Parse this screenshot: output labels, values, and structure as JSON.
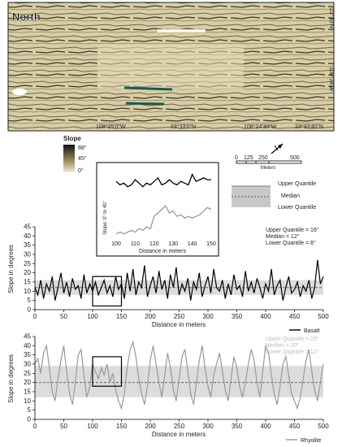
{
  "map": {
    "title": "North",
    "coords": [
      "108°25'0\"W",
      "23°33'0\"N",
      "108°24'30\"W",
      "23°33'40\"N",
      "23°33'N",
      "108°24'W"
    ],
    "colors": {
      "frame": "#222222",
      "background": "#d9cfa8"
    }
  },
  "slope_legend": {
    "title": "Slope",
    "labels": [
      "88°",
      "45°",
      "0°"
    ],
    "colors": {
      "high": "#111111",
      "mid": "#8a7a52",
      "low": "#f1ead2"
    }
  },
  "scale_bar": {
    "ticks": [
      "0",
      "125",
      "250",
      "500"
    ],
    "unit": "Meters"
  },
  "quantile_legend": {
    "upper": "Upper Quantile",
    "median": "Median",
    "lower": "Lower Quantile",
    "band_color": "#c8c8c8"
  },
  "chart_data": [
    {
      "type": "line",
      "id": "inset",
      "xlabel": "Distance in meters",
      "ylabel": "Slope: 0° to 40°",
      "xlim": [
        100,
        150
      ],
      "ylim": [
        0,
        40
      ],
      "xticks": [
        "100",
        "110",
        "120",
        "130",
        "140",
        "150"
      ],
      "series": [
        {
          "color": "#000000",
          "x": [
            100,
            102,
            104,
            106,
            108,
            110,
            112,
            114,
            116,
            118,
            120,
            122,
            124,
            126,
            128,
            130,
            132,
            134,
            136,
            138,
            140,
            142,
            144,
            146,
            148,
            150
          ],
          "y": [
            32,
            30,
            31,
            29,
            30,
            33,
            31,
            29,
            31,
            30,
            32,
            34,
            30,
            31,
            33,
            31,
            30,
            32,
            31,
            30,
            36,
            32,
            33,
            34,
            33,
            33
          ]
        },
        {
          "color": "#999999",
          "x": [
            100,
            102,
            104,
            106,
            108,
            110,
            112,
            114,
            116,
            118,
            120,
            122,
            124,
            126,
            128,
            130,
            132,
            134,
            136,
            138,
            140,
            142,
            144,
            146,
            148,
            150
          ],
          "y": [
            2,
            3,
            2,
            3,
            4,
            3,
            5,
            4,
            6,
            5,
            12,
            14,
            16,
            18,
            14,
            15,
            12,
            13,
            11,
            12,
            11,
            12,
            13,
            15,
            17,
            16
          ]
        }
      ]
    },
    {
      "type": "line",
      "id": "basalt",
      "xlabel": "Distance in meters",
      "ylabel": "Slope in degrees",
      "xlim": [
        0,
        500
      ],
      "ylim": [
        0,
        45
      ],
      "xticks": [
        "0",
        "50",
        "100",
        "150",
        "200",
        "250",
        "300",
        "350",
        "400",
        "450",
        "500"
      ],
      "yticks": [
        "0",
        "5",
        "10",
        "15",
        "20",
        "25",
        "30",
        "35",
        "40",
        "45"
      ],
      "quantiles": {
        "upper": 16,
        "median": 12,
        "lower": 8
      },
      "annotations": [
        "Upper Quantile = 16°",
        "Median = 12°",
        "Lower Quantile = 8°"
      ],
      "legend": "Basalt",
      "inset_box": {
        "x": [
          100,
          150
        ],
        "y": [
          2,
          18
        ]
      },
      "series": [
        {
          "name": "Basalt",
          "color": "#000000",
          "x": [
            0,
            5,
            10,
            15,
            20,
            25,
            30,
            35,
            40,
            45,
            50,
            55,
            60,
            65,
            70,
            75,
            80,
            85,
            90,
            95,
            100,
            105,
            110,
            115,
            120,
            125,
            130,
            135,
            140,
            145,
            150,
            155,
            160,
            165,
            170,
            175,
            180,
            185,
            190,
            195,
            200,
            205,
            210,
            215,
            220,
            225,
            230,
            235,
            240,
            245,
            250,
            255,
            260,
            265,
            270,
            275,
            280,
            285,
            290,
            295,
            300,
            305,
            310,
            315,
            320,
            325,
            330,
            335,
            340,
            345,
            350,
            355,
            360,
            365,
            370,
            375,
            380,
            385,
            390,
            395,
            400,
            405,
            410,
            415,
            420,
            425,
            430,
            435,
            440,
            445,
            450,
            455,
            460,
            465,
            470,
            475,
            480,
            485,
            490,
            495,
            500
          ],
          "y": [
            12,
            8,
            16,
            6,
            14,
            10,
            18,
            5,
            12,
            20,
            9,
            15,
            7,
            17,
            11,
            13,
            6,
            19,
            9,
            14,
            10,
            15,
            8,
            12,
            16,
            9,
            13,
            7,
            18,
            11,
            14,
            6,
            20,
            10,
            22,
            8,
            15,
            12,
            24,
            7,
            13,
            18,
            9,
            21,
            11,
            16,
            6,
            19,
            12,
            23,
            8,
            14,
            10,
            17,
            5,
            15,
            11,
            20,
            7,
            13,
            18,
            9,
            22,
            12,
            10,
            16,
            6,
            14,
            8,
            19,
            11,
            13,
            7,
            21,
            10,
            15,
            9,
            17,
            12,
            6,
            14,
            10,
            22,
            8,
            13,
            16,
            5,
            12,
            18,
            9,
            11,
            15,
            7,
            13,
            10,
            16,
            6,
            12,
            27,
            14,
            18
          ]
        }
      ]
    },
    {
      "type": "line",
      "id": "rhyolite",
      "xlabel": "Distance in meters",
      "ylabel": "Slope in degrees",
      "xlim": [
        0,
        500
      ],
      "ylim": [
        0,
        45
      ],
      "xticks": [
        "0",
        "50",
        "100",
        "150",
        "200",
        "250",
        "300",
        "350",
        "400",
        "450",
        "500"
      ],
      "yticks": [
        "0",
        "5",
        "10",
        "15",
        "20",
        "25",
        "30",
        "35",
        "40",
        "45"
      ],
      "quantiles": {
        "upper": 29,
        "median": 20,
        "lower": 12
      },
      "annotations": [
        "Upper Quantile = 29°",
        "Median = 20°",
        "Lower Quantile = 12°"
      ],
      "legend": "Rhyolite",
      "inset_box": {
        "x": [
          100,
          150
        ],
        "y": [
          18,
          34
        ]
      },
      "series": [
        {
          "name": "Rhyolite",
          "color": "#999999",
          "x": [
            0,
            5,
            10,
            15,
            20,
            25,
            30,
            35,
            40,
            45,
            50,
            55,
            60,
            65,
            70,
            75,
            80,
            85,
            90,
            95,
            100,
            105,
            110,
            115,
            120,
            125,
            130,
            135,
            140,
            145,
            150,
            155,
            160,
            165,
            170,
            175,
            180,
            185,
            190,
            195,
            200,
            205,
            210,
            215,
            220,
            225,
            230,
            235,
            240,
            245,
            250,
            255,
            260,
            265,
            270,
            275,
            280,
            285,
            290,
            295,
            300,
            305,
            310,
            315,
            320,
            325,
            330,
            335,
            340,
            345,
            350,
            355,
            360,
            365,
            370,
            375,
            380,
            385,
            390,
            395,
            400,
            405,
            410,
            415,
            420,
            425,
            430,
            435,
            440,
            445,
            450,
            455,
            460,
            465,
            470,
            475,
            480,
            485,
            490,
            495,
            500
          ],
          "y": [
            30,
            33,
            25,
            36,
            40,
            28,
            15,
            10,
            22,
            32,
            40,
            26,
            14,
            8,
            20,
            35,
            38,
            24,
            12,
            18,
            30,
            26,
            22,
            28,
            24,
            30,
            20,
            25,
            16,
            10,
            6,
            14,
            28,
            38,
            42,
            34,
            22,
            14,
            8,
            18,
            32,
            40,
            30,
            20,
            12,
            24,
            36,
            28,
            16,
            10,
            22,
            34,
            38,
            26,
            14,
            8,
            20,
            32,
            40,
            28,
            18,
            12,
            24,
            30,
            36,
            26,
            16,
            10,
            22,
            34,
            28,
            18,
            12,
            20,
            30,
            38,
            32,
            20,
            12,
            26,
            40,
            36,
            24,
            14,
            8,
            18,
            30,
            34,
            24,
            14,
            10,
            6,
            12,
            22,
            32,
            38,
            26,
            16,
            10,
            20,
            30
          ]
        }
      ]
    }
  ]
}
